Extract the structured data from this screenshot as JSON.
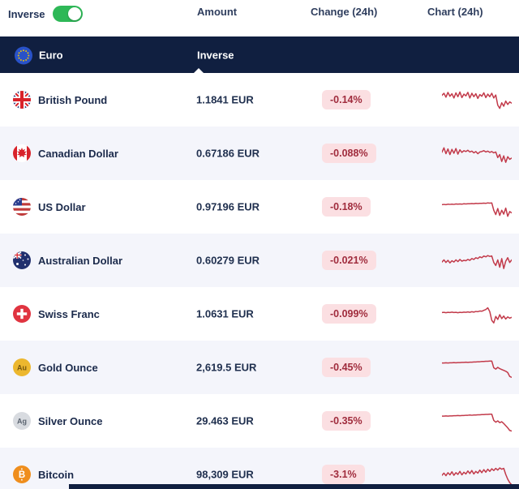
{
  "controls": {
    "inverse_label": "Inverse",
    "inverse_on": true
  },
  "columns": {
    "amount": "Amount",
    "change": "Change (24h)",
    "chart": "Chart (24h)"
  },
  "section": {
    "base_currency": "Euro",
    "base_flag": "eu",
    "inverse_col_label": "Inverse"
  },
  "colors": {
    "navy": "#101f40",
    "row_alt": "#f4f5fb",
    "badge_bg": "#fbdfe2",
    "badge_text": "#a02c3d",
    "spark": "#c23a4a",
    "toggle_green": "#2eb857"
  },
  "rows": [
    {
      "name": "British Pound",
      "flag": "gb",
      "amount": "1.1841 EUR",
      "change": "-0.14%",
      "spark": [
        70,
        80,
        62,
        84,
        66,
        78,
        58,
        82,
        64,
        86,
        60,
        76,
        68,
        84,
        58,
        80,
        64,
        78,
        56,
        74,
        66,
        82,
        60,
        76,
        64,
        80,
        58,
        72,
        25,
        10,
        36,
        20,
        44,
        28,
        40,
        34
      ]
    },
    {
      "name": "Canadian Dollar",
      "flag": "ca",
      "amount": "0.67186 EUR",
      "change": "-0.088%",
      "spark": [
        55,
        75,
        48,
        70,
        44,
        68,
        50,
        72,
        46,
        66,
        54,
        62,
        58,
        64,
        56,
        60,
        52,
        58,
        48,
        56,
        58,
        62,
        56,
        60,
        54,
        58,
        52,
        56,
        30,
        44,
        12,
        38,
        8,
        34,
        22,
        28
      ]
    },
    {
      "name": "US Dollar",
      "flag": "us",
      "amount": "0.97196 EUR",
      "change": "-0.18%",
      "spark": [
        60,
        61,
        60,
        62,
        61,
        62,
        61,
        63,
        62,
        63,
        62,
        64,
        63,
        64,
        64,
        65,
        64,
        66,
        65,
        66,
        66,
        67,
        66,
        68,
        67,
        68,
        34,
        14,
        42,
        10,
        34,
        16,
        44,
        6,
        28,
        22
      ]
    },
    {
      "name": "Australian Dollar",
      "flag": "au",
      "amount": "0.60279 EUR",
      "change": "-0.021%",
      "spark": [
        42,
        52,
        40,
        50,
        38,
        48,
        42,
        52,
        44,
        54,
        46,
        50,
        48,
        54,
        50,
        58,
        54,
        62,
        58,
        66,
        62,
        70,
        66,
        72,
        68,
        70,
        40,
        26,
        52,
        18,
        58,
        12,
        46,
        62,
        40,
        52
      ]
    },
    {
      "name": "Swiss Franc",
      "flag": "ch",
      "amount": "1.0631 EUR",
      "change": "-0.099%",
      "spark": [
        56,
        57,
        55,
        57,
        56,
        58,
        56,
        57,
        55,
        57,
        56,
        58,
        57,
        59,
        57,
        60,
        58,
        61,
        60,
        63,
        62,
        66,
        70,
        78,
        60,
        20,
        8,
        38,
        24,
        46,
        28,
        40,
        26,
        36,
        30,
        34
      ]
    },
    {
      "name": "Gold Ounce",
      "flag": "gold",
      "amount": "2,619.5 EUR",
      "change": "-0.45%",
      "spark": [
        70,
        70,
        71,
        70,
        71,
        71,
        72,
        71,
        72,
        72,
        73,
        73,
        74,
        73,
        74,
        74,
        75,
        75,
        76,
        76,
        77,
        77,
        78,
        78,
        79,
        79,
        48,
        42,
        50,
        44,
        40,
        36,
        32,
        26,
        8,
        4
      ]
    },
    {
      "name": "Silver Ounce",
      "flag": "silver",
      "amount": "29.463 EUR",
      "change": "-0.35%",
      "spark": [
        72,
        72,
        73,
        72,
        73,
        73,
        74,
        74,
        75,
        74,
        75,
        75,
        76,
        76,
        77,
        76,
        77,
        77,
        78,
        78,
        79,
        79,
        80,
        80,
        81,
        81,
        52,
        44,
        50,
        42,
        46,
        38,
        28,
        18,
        6,
        3
      ]
    },
    {
      "name": "Bitcoin",
      "flag": "btc",
      "amount": "98,309 EUR",
      "change": "-3.1%",
      "spark": [
        46,
        56,
        44,
        58,
        48,
        62,
        46,
        58,
        50,
        64,
        48,
        60,
        52,
        66,
        54,
        68,
        52,
        64,
        56,
        70,
        58,
        72,
        60,
        74,
        64,
        76,
        68,
        78,
        70,
        80,
        74,
        78,
        50,
        28,
        12,
        2
      ]
    }
  ]
}
